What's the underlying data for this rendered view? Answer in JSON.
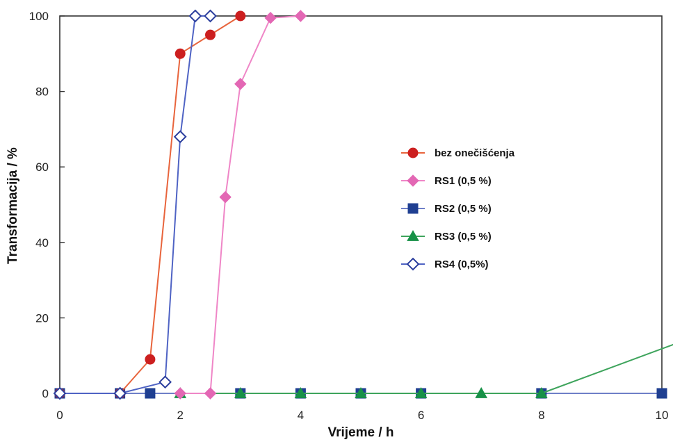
{
  "chart_data": {
    "type": "line",
    "xlabel": "Vrijeme / h",
    "ylabel": "Transformacija / %",
    "xlim": [
      0,
      10
    ],
    "ylim": [
      0,
      100
    ],
    "x_ticks": [
      0,
      2,
      4,
      6,
      8,
      10
    ],
    "y_ticks": [
      0,
      20,
      40,
      60,
      80,
      100
    ],
    "grid": false,
    "legend_position": "center-right",
    "series": [
      {
        "name": "bez onečišćenja",
        "color": "#cc1f1f",
        "line_color": "#e8643c",
        "marker": "circle-filled",
        "points": [
          [
            0,
            0
          ],
          [
            1,
            0
          ],
          [
            1.5,
            9
          ],
          [
            2,
            90
          ],
          [
            2.5,
            95
          ],
          [
            3,
            100
          ]
        ]
      },
      {
        "name": "RS1 (0,5 %)",
        "color": "#e367b4",
        "line_color": "#ef86c7",
        "marker": "diamond-filled",
        "points": [
          [
            2,
            0
          ],
          [
            2.5,
            0
          ],
          [
            2.75,
            52
          ],
          [
            3,
            82
          ],
          [
            3.5,
            99.5
          ],
          [
            4,
            100
          ]
        ]
      },
      {
        "name": "RS2 (0,5 %)",
        "color": "#1f3f91",
        "line_color": "#6e7fc8",
        "marker": "square-filled",
        "points": [
          [
            0,
            0
          ],
          [
            1,
            0
          ],
          [
            1.5,
            0
          ],
          [
            3,
            0
          ],
          [
            4,
            0
          ],
          [
            5,
            0
          ],
          [
            6,
            0
          ],
          [
            8,
            0
          ],
          [
            10,
            0
          ]
        ]
      },
      {
        "name": "RS3 (0,5 %)",
        "color": "#179147",
        "line_color": "#3ea45c",
        "marker": "triangle-filled",
        "points": [
          [
            2,
            0
          ],
          [
            3,
            0
          ],
          [
            4,
            0
          ],
          [
            5,
            0
          ],
          [
            6,
            0
          ],
          [
            7,
            0
          ],
          [
            8,
            0
          ],
          [
            10.2,
            13
          ]
        ]
      },
      {
        "name": "RS4 (0,5%)",
        "color": "#2c3f9e",
        "line_color": "#4f63c4",
        "marker": "diamond-open",
        "points": [
          [
            0,
            0
          ],
          [
            1,
            0
          ],
          [
            1.75,
            3
          ],
          [
            2,
            68
          ],
          [
            2.25,
            100
          ],
          [
            2.5,
            100
          ]
        ]
      }
    ]
  }
}
